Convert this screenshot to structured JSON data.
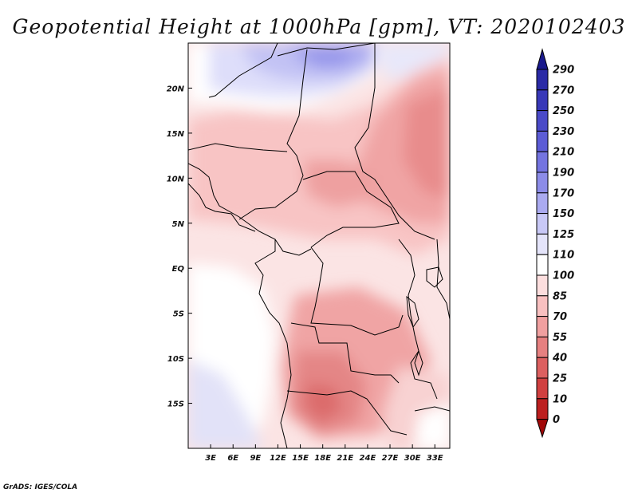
{
  "title": "Geopotential Height at 1000hPa [gpm], VT: 2020102403",
  "credit": "GrADS: IGES/COLA",
  "map": {
    "lon_range": [
      0,
      35
    ],
    "lat_range": [
      -20,
      25
    ],
    "x_ticks": [
      {
        "value": 3,
        "label": "3E"
      },
      {
        "value": 6,
        "label": "6E"
      },
      {
        "value": 9,
        "label": "9E"
      },
      {
        "value": 12,
        "label": "12E"
      },
      {
        "value": 15,
        "label": "15E"
      },
      {
        "value": 18,
        "label": "18E"
      },
      {
        "value": 21,
        "label": "21E"
      },
      {
        "value": 24,
        "label": "24E"
      },
      {
        "value": 27,
        "label": "27E"
      },
      {
        "value": 30,
        "label": "30E"
      },
      {
        "value": 33,
        "label": "33E"
      }
    ],
    "y_ticks": [
      {
        "value": 20,
        "label": "20N"
      },
      {
        "value": 15,
        "label": "15N"
      },
      {
        "value": 10,
        "label": "10N"
      },
      {
        "value": 5,
        "label": "5N"
      },
      {
        "value": 0,
        "label": "EQ"
      },
      {
        "value": -5,
        "label": "5S"
      },
      {
        "value": -10,
        "label": "10S"
      },
      {
        "value": -15,
        "label": "15S"
      }
    ]
  },
  "colorbar": {
    "labels": [
      "290",
      "270",
      "250",
      "230",
      "210",
      "190",
      "170",
      "150",
      "125",
      "110",
      "100",
      "85",
      "70",
      "55",
      "40",
      "25",
      "10",
      "0"
    ],
    "colors": [
      "#1a1a8c",
      "#2a2aa6",
      "#3838b8",
      "#4a4ac8",
      "#5c5cd6",
      "#7474e0",
      "#8c8ce8",
      "#aaaaf0",
      "#c8c8f6",
      "#e4e4fa",
      "#ffffff",
      "#fcdede",
      "#f8c0c0",
      "#f0a0a0",
      "#e68080",
      "#dc6060",
      "#d04040",
      "#bc2020",
      "#a00808"
    ]
  }
}
